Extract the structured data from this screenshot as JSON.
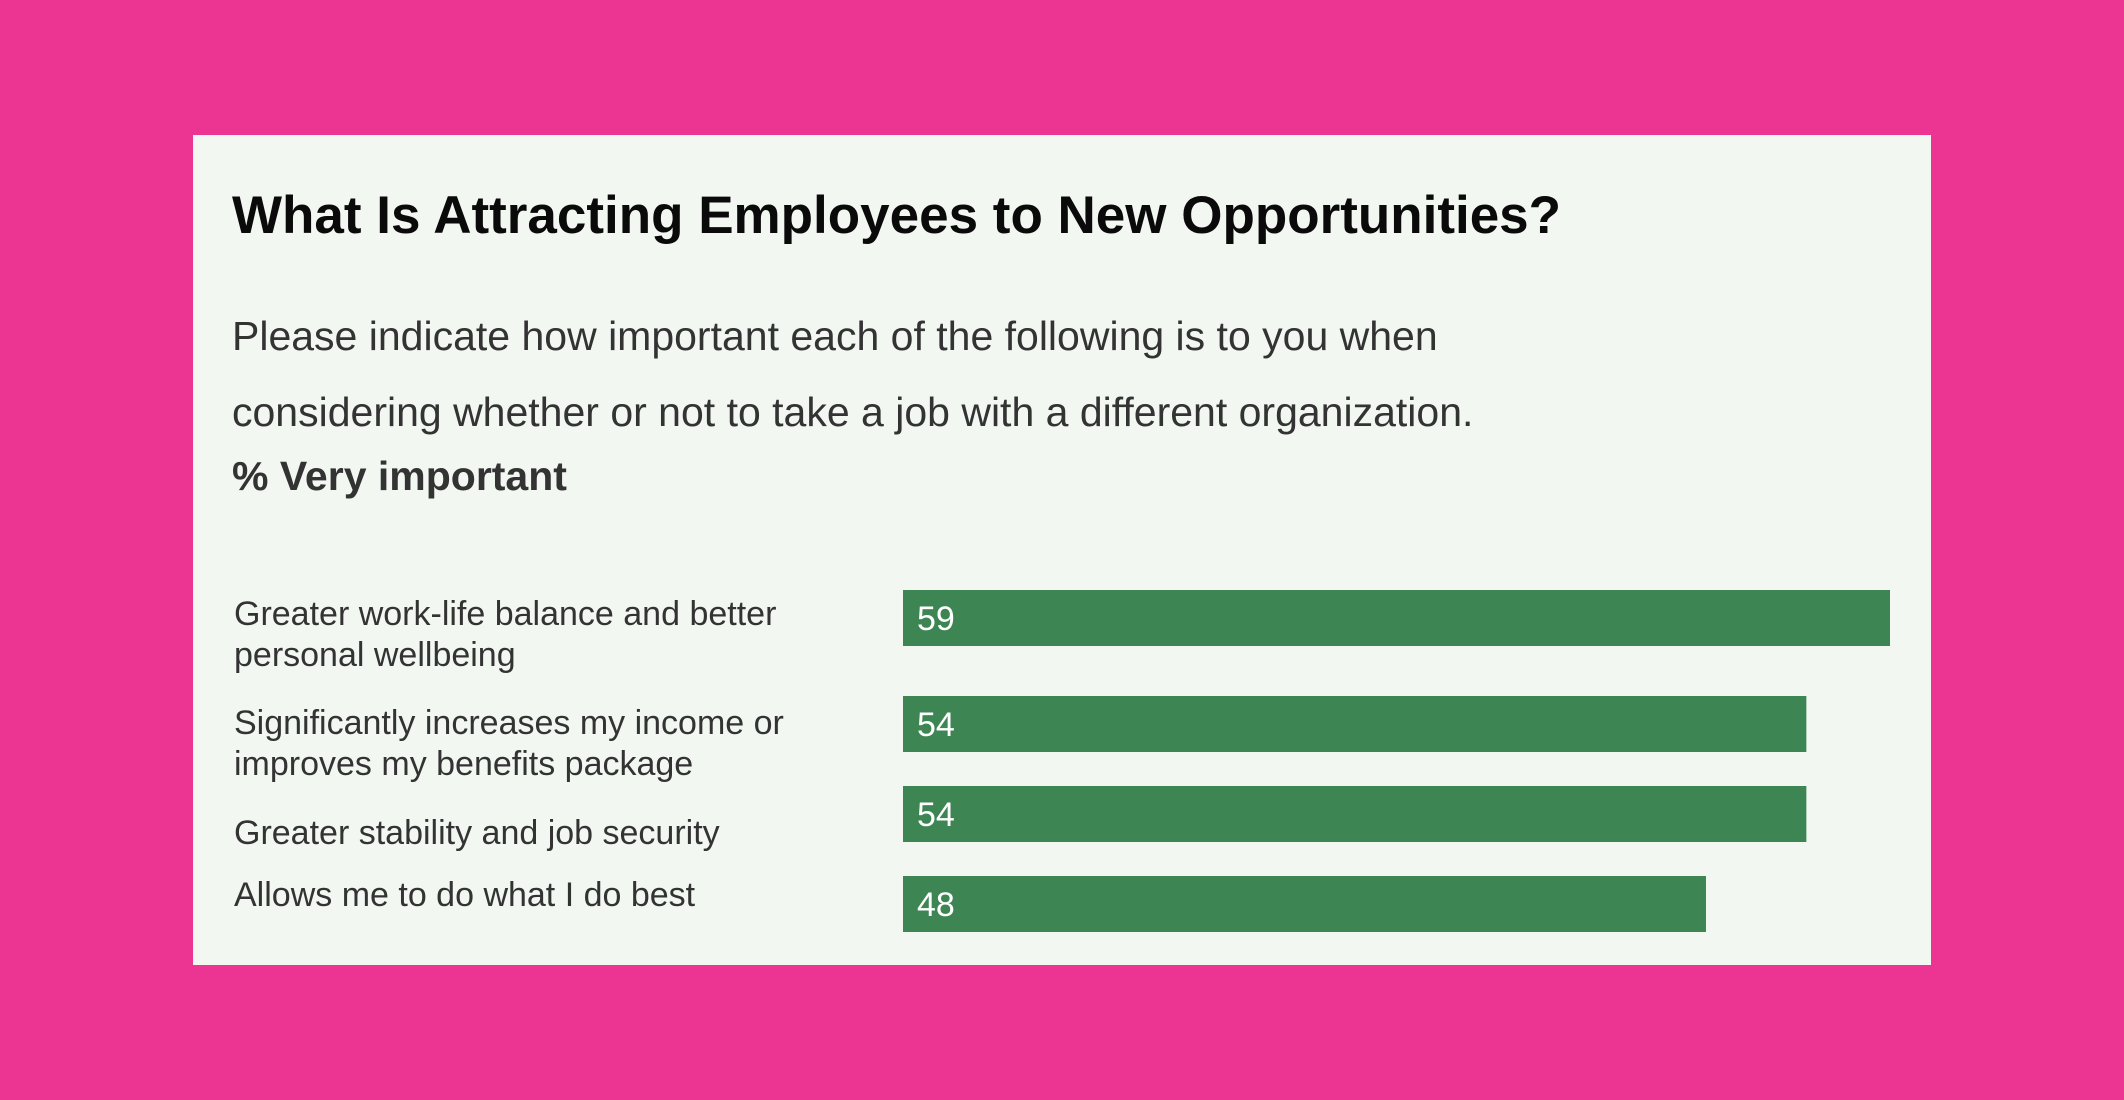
{
  "colors": {
    "page_background": "#ec3493",
    "card_background": "#f2f7f2",
    "bar": "#3d8653"
  },
  "header": {
    "title": "What Is Attracting Employees to New Opportunities?",
    "subtitle_lines": [
      "Please indicate how important each of the following is to you when",
      "considering whether or not to take a job with a different organization."
    ],
    "measure_label": "% Very important"
  },
  "chart_data": {
    "type": "bar",
    "orientation": "horizontal",
    "title": "What Is Attracting Employees to New Opportunities?",
    "ylabel": "% Very important",
    "categories": [
      [
        "Greater work-life balance and better",
        "personal wellbeing"
      ],
      [
        "Significantly increases my income or",
        "improves my benefits package"
      ],
      [
        "Greater stability and job security"
      ],
      [
        "Allows me to do what I do best"
      ]
    ],
    "values": [
      59,
      54,
      54,
      48
    ],
    "data_labels": [
      "59",
      "54",
      "54",
      "48"
    ],
    "grid": false
  }
}
